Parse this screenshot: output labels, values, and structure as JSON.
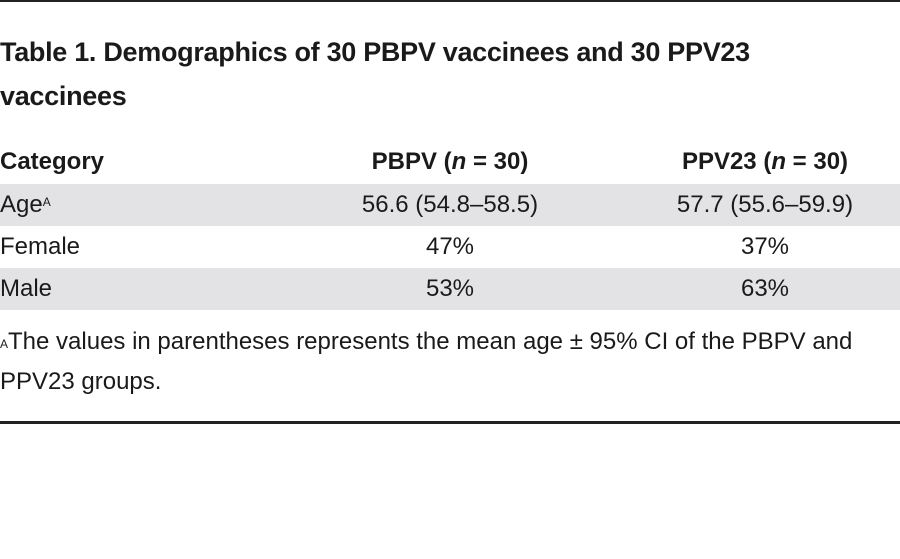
{
  "title": "Table 1. Demographics of 30 PBPV vaccinees and 30 PPV23 vaccinees",
  "table": {
    "headers": {
      "category": "Category",
      "pbpv_prefix": "PBPV (",
      "pbpv_n": "n",
      "pbpv_suffix": " = 30)",
      "ppv23_prefix": "PPV23 (",
      "ppv23_n": "n",
      "ppv23_suffix": " = 30)"
    },
    "rows": [
      {
        "category": "Age",
        "marker": "A",
        "pbpv": "56.6 (54.8–58.5)",
        "ppv23": "57.7 (55.6–59.9)"
      },
      {
        "category": "Female",
        "pbpv": "47%",
        "ppv23": "37%"
      },
      {
        "category": "Male",
        "pbpv": "53%",
        "ppv23": "63%"
      }
    ]
  },
  "footnote": {
    "marker": "A",
    "text": "The values in parentheses represents the mean age ± 95% CI of the PBPV and PPV23 groups."
  }
}
